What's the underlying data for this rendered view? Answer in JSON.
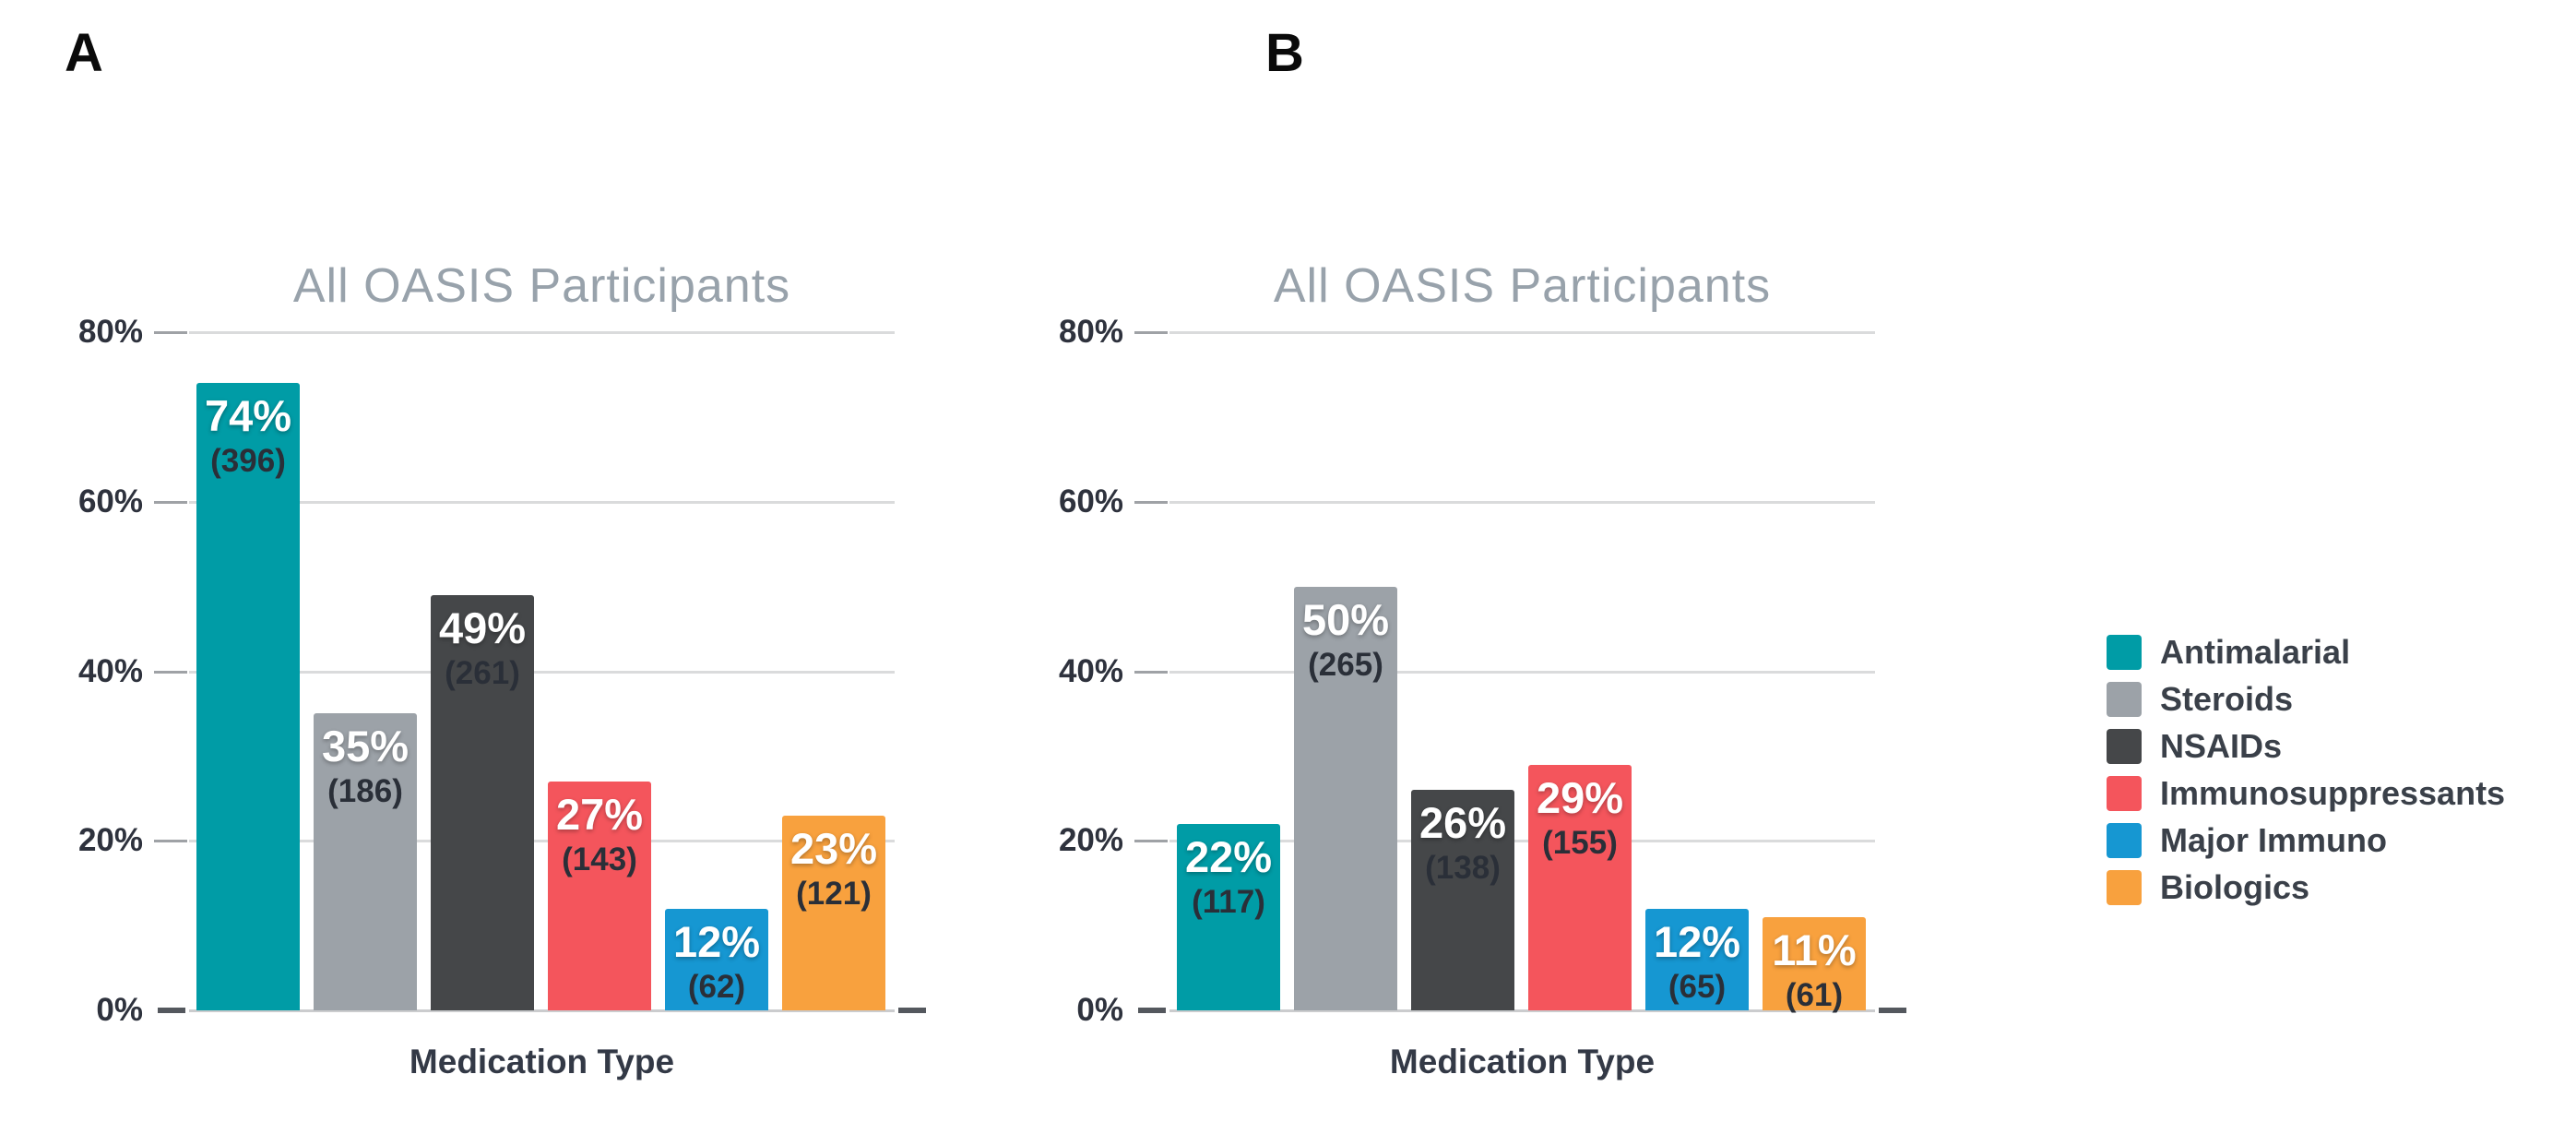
{
  "figure": {
    "panel_a_label": "A",
    "panel_b_label": "B"
  },
  "legend": {
    "position": "right",
    "items": [
      {
        "label": "Antimalarial",
        "color": "#009CA6"
      },
      {
        "label": "Steroids",
        "color": "#9CA2A8"
      },
      {
        "label": "NSAIDs",
        "color": "#454749"
      },
      {
        "label": "Immunosuppressants",
        "color": "#F4555C"
      },
      {
        "label": "Major Immuno",
        "color": "#1697D2"
      },
      {
        "label": "Biologics",
        "color": "#F8A13E"
      }
    ]
  },
  "chart_data": [
    {
      "type": "bar",
      "panel": "A",
      "title": "All OASIS Participants",
      "xlabel": "Medication Type",
      "ylabel": "",
      "ylim": [
        0,
        80
      ],
      "grid": true,
      "yticks": [
        {
          "label": "0%",
          "value": 0
        },
        {
          "label": "20%",
          "value": 20
        },
        {
          "label": "40%",
          "value": 40
        },
        {
          "label": "60%",
          "value": 60
        },
        {
          "label": "80%",
          "value": 80
        }
      ],
      "categories": [
        "Antimalarial",
        "Steroids",
        "NSAIDs",
        "Immunosuppressants",
        "Major Immuno",
        "Biologics"
      ],
      "series": [
        {
          "name": "All OASIS Participants",
          "values": [
            74,
            35,
            49,
            27,
            12,
            23
          ],
          "counts": [
            396,
            186,
            261,
            143,
            62,
            121
          ]
        }
      ],
      "bar_labels": [
        "74%",
        "35%",
        "49%",
        "27%",
        "12%",
        "23%"
      ],
      "count_labels": [
        "(396)",
        "(186)",
        "(261)",
        "(143)",
        "(62)",
        "(121)"
      ]
    },
    {
      "type": "bar",
      "panel": "B",
      "title": "All OASIS Participants",
      "xlabel": "Medication Type",
      "ylabel": "",
      "ylim": [
        0,
        80
      ],
      "grid": true,
      "yticks": [
        {
          "label": "0%",
          "value": 0
        },
        {
          "label": "20%",
          "value": 20
        },
        {
          "label": "40%",
          "value": 40
        },
        {
          "label": "60%",
          "value": 60
        },
        {
          "label": "80%",
          "value": 80
        }
      ],
      "categories": [
        "Antimalarial",
        "Steroids",
        "NSAIDs",
        "Immunosuppressants",
        "Major Immuno",
        "Biologics"
      ],
      "series": [
        {
          "name": "All OASIS Participants",
          "values": [
            22,
            50,
            26,
            29,
            12,
            11
          ],
          "counts": [
            117,
            265,
            138,
            155,
            65,
            61
          ]
        }
      ],
      "bar_labels": [
        "22%",
        "50%",
        "26%",
        "29%",
        "12%",
        "11%"
      ],
      "count_labels": [
        "(117)",
        "(265)",
        "(138)",
        "(155)",
        "(65)",
        "(61)"
      ]
    }
  ]
}
